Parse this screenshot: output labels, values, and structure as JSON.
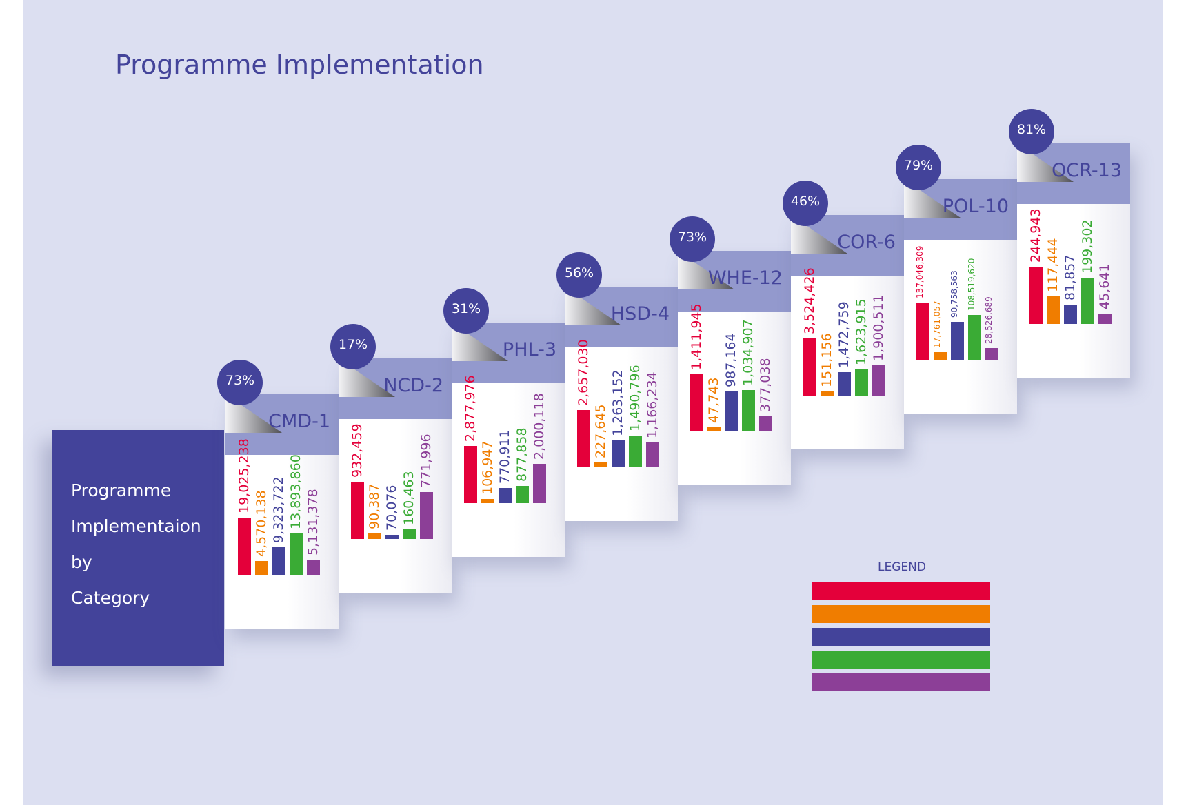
{
  "page": {
    "title": "Programme Implementation",
    "intro_lines": [
      "Programme",
      "Implementaion",
      "by",
      "Category"
    ]
  },
  "legend": {
    "title": "LEGEND"
  },
  "chart_data": {
    "type": "bar",
    "title": "Programme Implementation",
    "series_colors": [
      "#e4003a",
      "#f07d00",
      "#43439a",
      "#3aab35",
      "#8c3f97"
    ],
    "categories": [
      {
        "label": "CMD-1",
        "percent": "73%",
        "percent_value": 73,
        "values": [
          19025238,
          4570138,
          9323722,
          13893860,
          5131378
        ],
        "value_labels": [
          "19,025,238",
          "4,570,138",
          "9,323,722",
          "13,893,860",
          "5,131,378"
        ]
      },
      {
        "label": "NCD-2",
        "percent": "17%",
        "percent_value": 17,
        "values": [
          932459,
          90387,
          70076,
          160463,
          771996
        ],
        "value_labels": [
          "932,459",
          "90,387",
          "70,076",
          "160,463",
          "771,996"
        ]
      },
      {
        "label": "PHL-3",
        "percent": "31%",
        "percent_value": 31,
        "values": [
          2877976,
          106947,
          770911,
          877858,
          2000118
        ],
        "value_labels": [
          "2,877,976",
          "106,947",
          "770,911",
          "877,858",
          "2,000,118"
        ]
      },
      {
        "label": "HSD-4",
        "percent": "56%",
        "percent_value": 56,
        "values": [
          2657030,
          227645,
          1263152,
          1490796,
          1166234
        ],
        "value_labels": [
          "2,657,030",
          "227,645",
          "1,263,152",
          "1,490,796",
          "1,166,234"
        ]
      },
      {
        "label": "WHE-12",
        "percent": "73%",
        "percent_value": 73,
        "values": [
          1411945,
          47743,
          987164,
          1034907,
          377038
        ],
        "value_labels": [
          "1,411,945",
          "47,743",
          "987,164",
          "1,034,907",
          "377,038"
        ]
      },
      {
        "label": "COR-6",
        "percent": "46%",
        "percent_value": 46,
        "values": [
          3524426,
          151156,
          1472759,
          1623915,
          1900511
        ],
        "value_labels": [
          "3,524,426",
          "151,156",
          "1,472,759",
          "1,623,915",
          "1,900,511"
        ]
      },
      {
        "label": "POL-10",
        "percent": "79%",
        "percent_value": 79,
        "values": [
          137046309,
          17761057,
          90758563,
          108519620,
          28526689
        ],
        "value_labels": [
          "137,046,309",
          "17,761,057",
          "90,758,563",
          "108,519,620",
          "28,526,689"
        ]
      },
      {
        "label": "OCR-13",
        "percent": "81%",
        "percent_value": 81,
        "values": [
          244943,
          117444,
          81857,
          199302,
          45641
        ],
        "value_labels": [
          "244,943",
          "117,444",
          "81,857",
          "199,302",
          "45,641"
        ]
      }
    ]
  }
}
